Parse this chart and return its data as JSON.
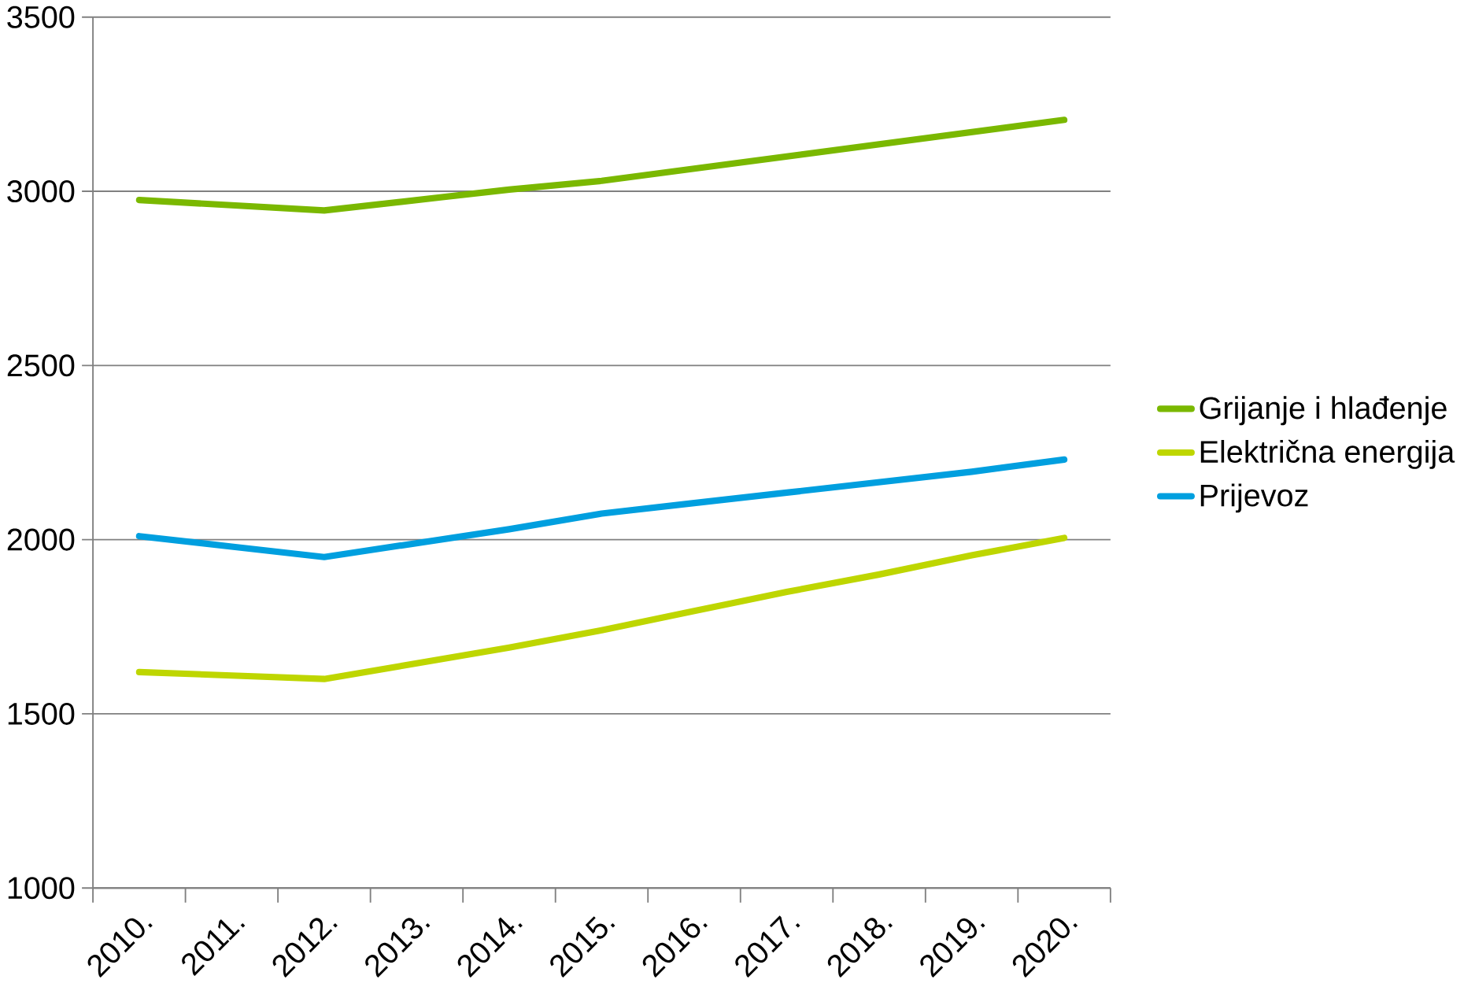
{
  "chart_data": {
    "type": "line",
    "categories": [
      "2010.",
      "2011.",
      "2012.",
      "2013.",
      "2014.",
      "2015.",
      "2016.",
      "2017.",
      "2018.",
      "2019.",
      "2020."
    ],
    "series": [
      {
        "name": "Grijanje i hlađenje",
        "color": "#7ab800",
        "values": [
          2975,
          2960,
          2945,
          2975,
          3005,
          3030,
          3065,
          3100,
          3135,
          3170,
          3205
        ]
      },
      {
        "name": "Električna energija",
        "color": "#bed600",
        "values": [
          1620,
          1610,
          1600,
          1645,
          1690,
          1740,
          1795,
          1850,
          1900,
          1955,
          2005
        ]
      },
      {
        "name": "Prijevoz",
        "color": "#009fdf",
        "values": [
          2010,
          1980,
          1950,
          1990,
          2030,
          2075,
          2105,
          2135,
          2165,
          2195,
          2230
        ]
      }
    ],
    "ylim": [
      1000,
      3500
    ],
    "yticks": [
      1000,
      1500,
      2000,
      2500,
      3000,
      3500
    ],
    "grid": "y",
    "legend": "right",
    "marker": "none",
    "line_style": "solid"
  }
}
